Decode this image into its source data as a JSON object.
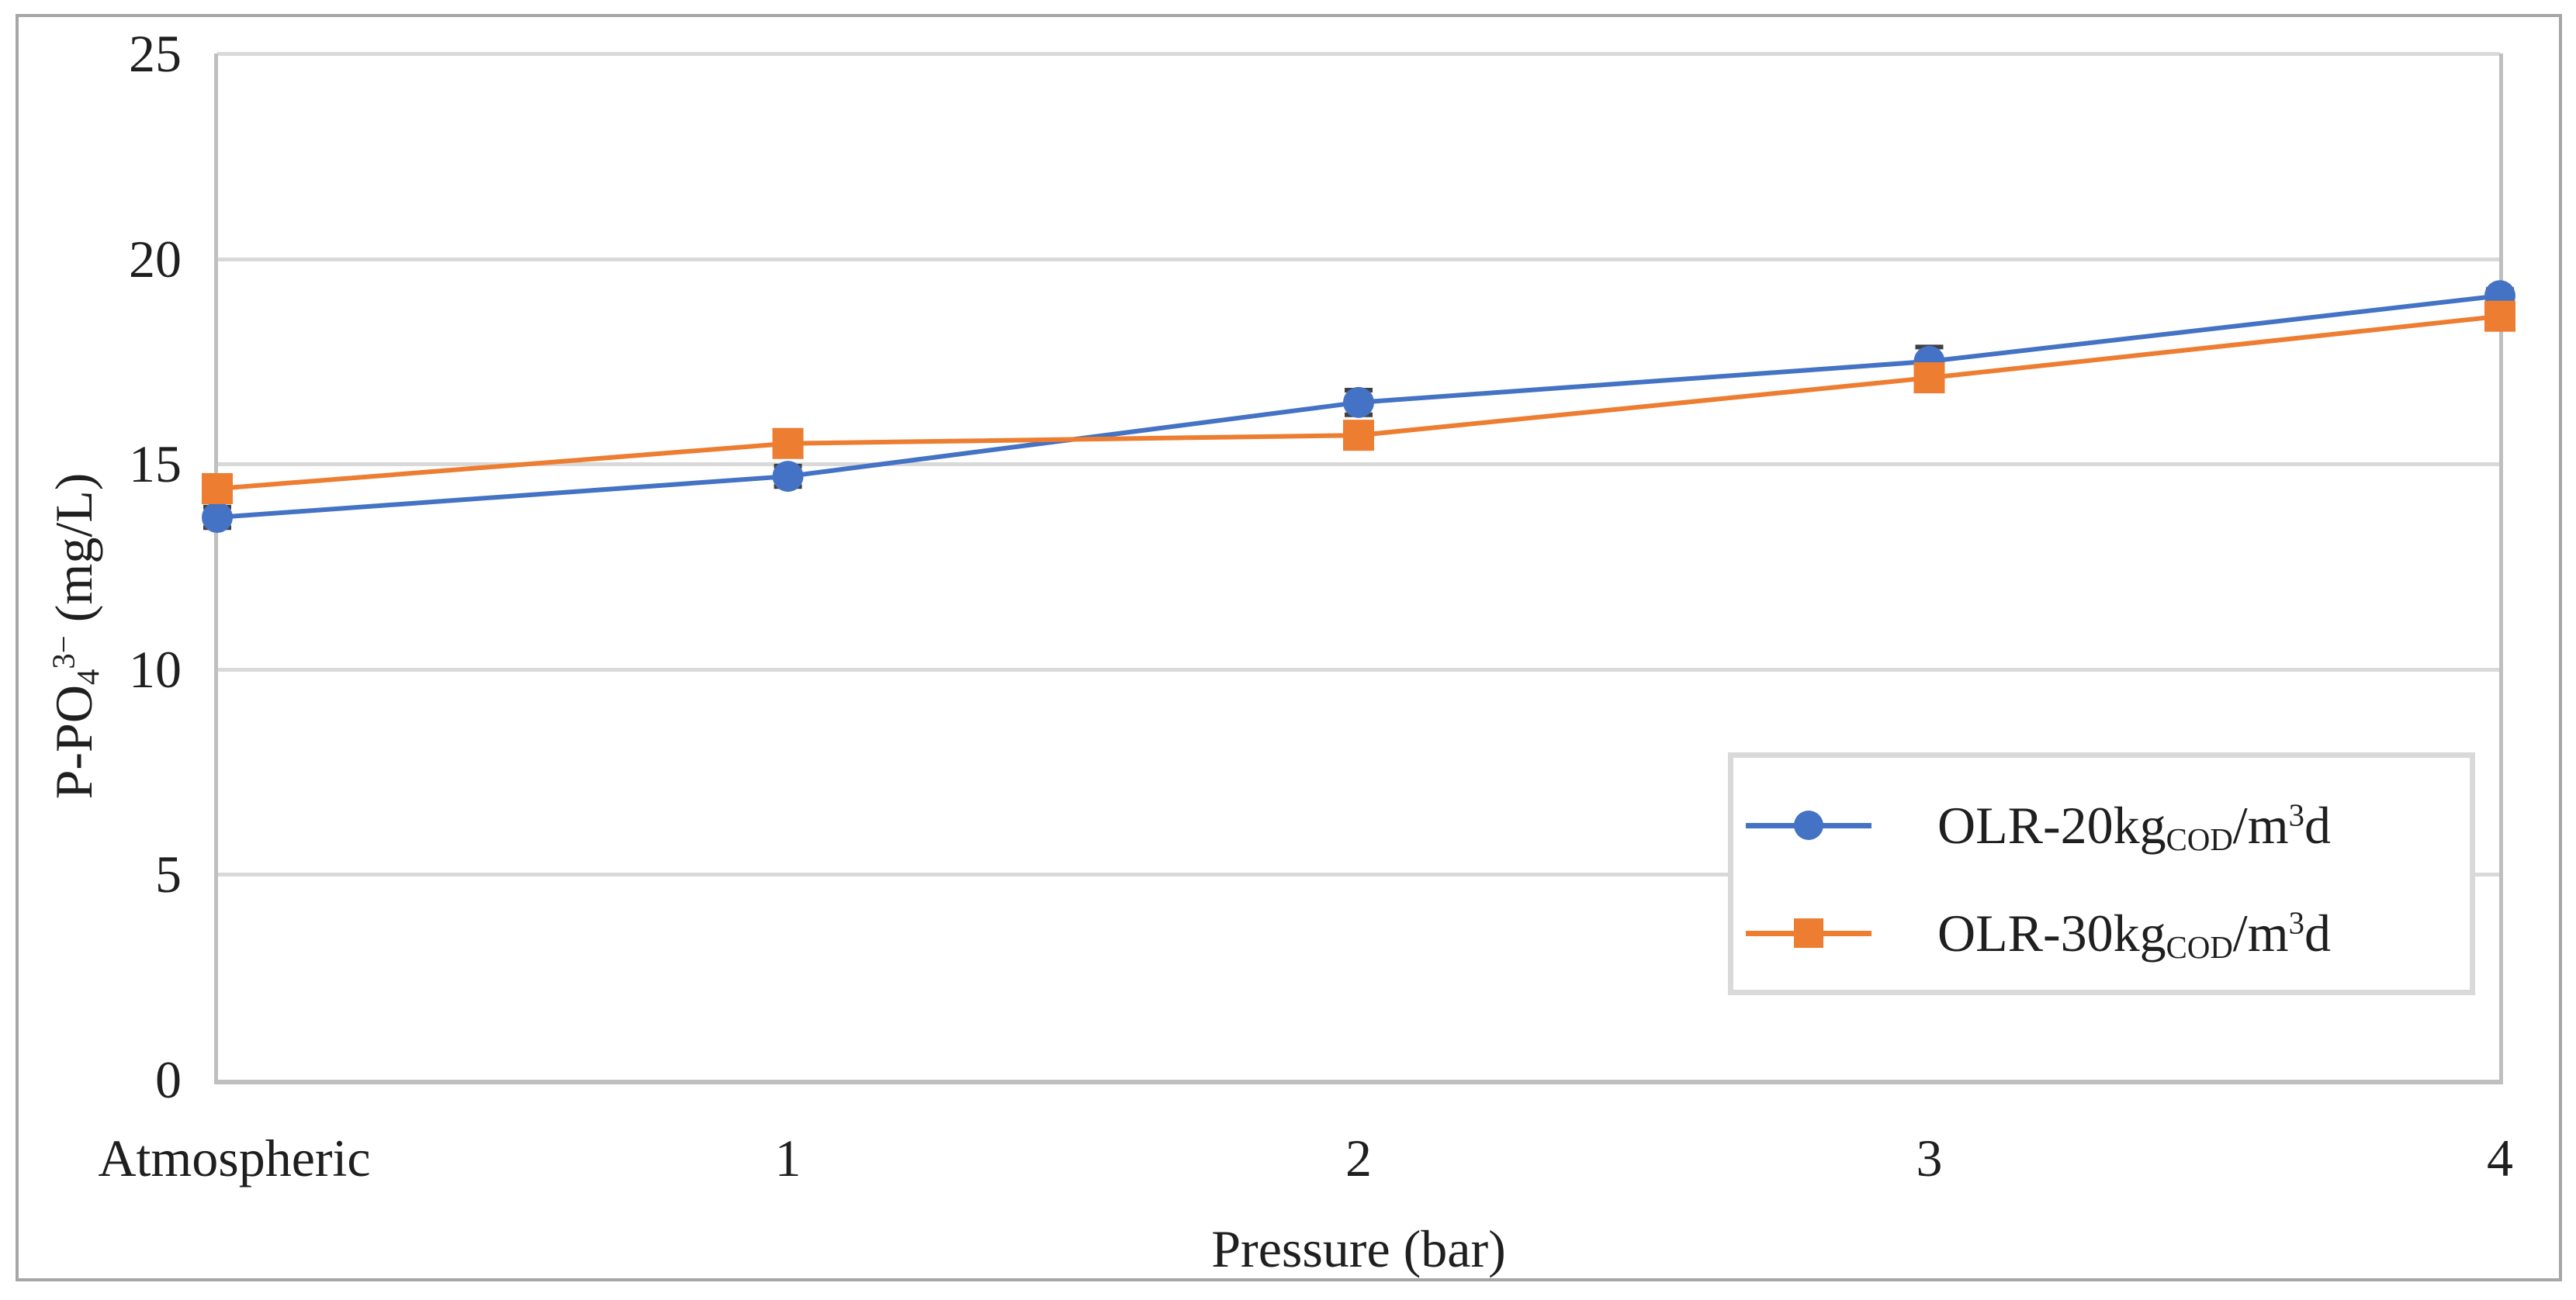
{
  "figure": {
    "background": "#ffffff",
    "border_color": "#a6a6a6"
  },
  "chart_data": {
    "type": "line",
    "categories": [
      "Atmospheric",
      "1",
      "2",
      "3",
      "4"
    ],
    "series": [
      {
        "name": "OLR-20kgCOD/m³d",
        "name_parts": [
          {
            "t": "OLR-20kg"
          },
          {
            "sub": "COD"
          },
          {
            "t": "/m"
          },
          {
            "sup": "3"
          },
          {
            "t": "d"
          }
        ],
        "color": "#4472C4",
        "marker": "circle",
        "values": [
          13.7,
          14.7,
          16.5,
          17.5,
          19.1
        ],
        "errors": [
          0.25,
          0.25,
          0.3,
          0.35,
          0.15
        ]
      },
      {
        "name": "OLR-30kgCOD/m³d",
        "name_parts": [
          {
            "t": "OLR-30kg"
          },
          {
            "sub": "COD"
          },
          {
            "t": "/m"
          },
          {
            "sup": "3"
          },
          {
            "t": "d"
          }
        ],
        "color": "#ED7D31",
        "marker": "square",
        "values": [
          14.4,
          15.5,
          15.7,
          17.1,
          18.6
        ],
        "errors": [
          0.3,
          0.3,
          0.3,
          0.3,
          0.15
        ]
      }
    ],
    "title": "",
    "xlabel": "Pressure (bar)",
    "ylabel": "P-PO₄³⁻ (mg/L)",
    "ylabel_parts": [
      {
        "t": "P-PO"
      },
      {
        "sub": "4"
      },
      {
        "sup": "3−"
      },
      {
        "t": " (mg/L)"
      }
    ],
    "ylim": [
      0,
      25
    ],
    "yticks": [
      25,
      20,
      15,
      10,
      5,
      0
    ],
    "grid": "horizontal",
    "legend_position": "inside-right",
    "gridline_color": "#d9d9d9",
    "axis_line_color": "#bfbfbf",
    "error_bar_color": "#404040",
    "text_color": "#1f1f1f"
  }
}
